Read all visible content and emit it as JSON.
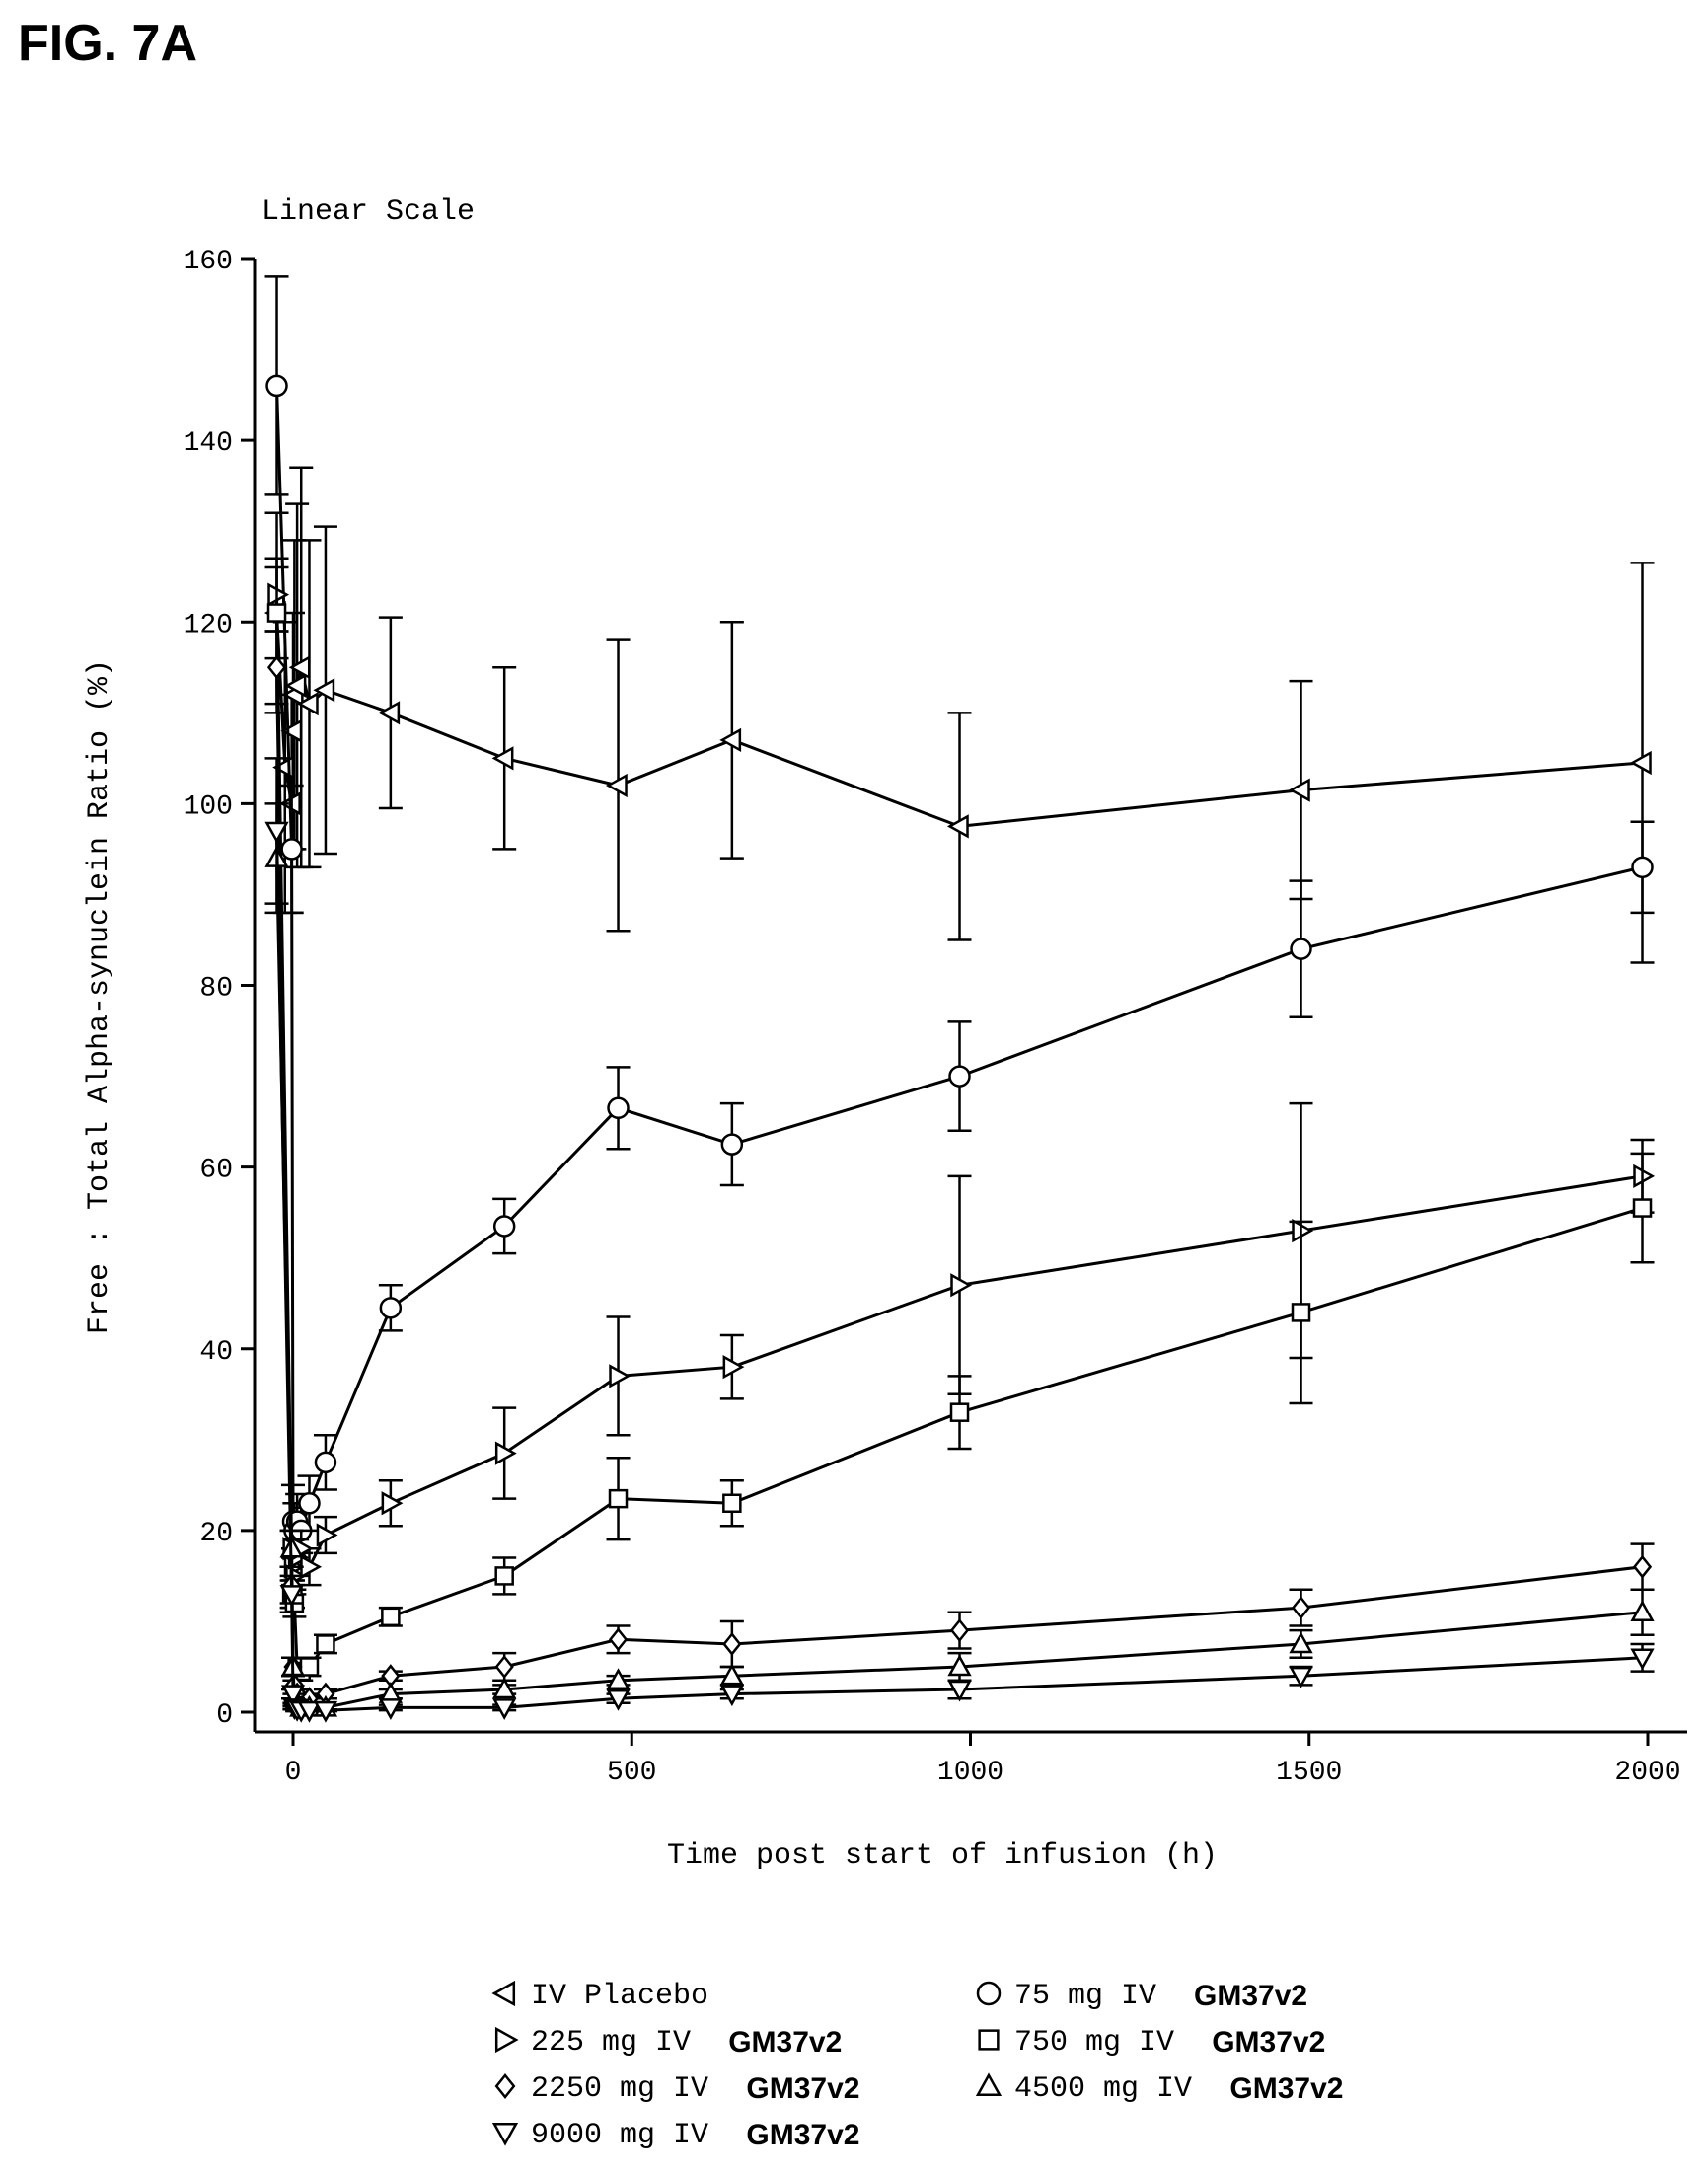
{
  "figure_label": "FIG. 7A",
  "chart_data": {
    "type": "line",
    "title": "Linear Scale",
    "xlabel": "Time post start of infusion (h)",
    "ylabel": "Free : Total Alpha-synuclein Ratio (%)",
    "xlim": [
      -50,
      2050
    ],
    "ylim": [
      0,
      160
    ],
    "xticks": [
      0,
      500,
      1000,
      1500,
      2000
    ],
    "yticks": [
      0,
      20,
      40,
      60,
      80,
      100,
      120,
      140,
      160
    ],
    "grid": false,
    "legend_position": "bottom",
    "series": [
      {
        "name": "IV Placebo",
        "suffix": "",
        "marker": "triangle-left",
        "x": [
          -24,
          -12,
          -2,
          0,
          2,
          6,
          12,
          24,
          48,
          144,
          312,
          480,
          648,
          984,
          1488,
          1992
        ],
        "y": [
          121,
          104,
          100,
          108,
          112,
          113,
          115,
          111,
          112.5,
          110,
          105,
          102,
          107,
          97.5,
          101.5,
          104.5
        ],
        "err": [
          11,
          16,
          12,
          13,
          17,
          20,
          22,
          18,
          18,
          10.5,
          10,
          16,
          13,
          12.5,
          12,
          22
        ]
      },
      {
        "name": "75 mg IV",
        "suffix": "GM37v2",
        "marker": "circle",
        "x": [
          -24,
          -2,
          0,
          2,
          6,
          12,
          24,
          48,
          144,
          312,
          480,
          648,
          984,
          1488,
          1992
        ],
        "y": [
          146,
          95,
          21,
          20,
          21,
          20,
          23,
          27.5,
          44.5,
          53.5,
          66.5,
          62.5,
          70,
          84,
          93
        ],
        "err": [
          12,
          7,
          4,
          3,
          3,
          2.5,
          3,
          3,
          2.5,
          3,
          4.5,
          4.5,
          6,
          7.5,
          5
        ]
      },
      {
        "name": "225 mg IV",
        "suffix": "GM37v2",
        "marker": "triangle-right",
        "x": [
          -24,
          -2,
          0,
          2,
          6,
          12,
          24,
          48,
          144,
          312,
          480,
          648,
          984,
          1488,
          1992
        ],
        "y": [
          123,
          18,
          16,
          15,
          17,
          18,
          16,
          19.5,
          23,
          28.5,
          37,
          38,
          47,
          53,
          59
        ],
        "err": [
          4,
          2,
          2,
          2,
          2,
          2,
          2,
          2,
          2.5,
          5,
          6.5,
          3.5,
          12,
          14,
          4
        ]
      },
      {
        "name": "750 mg IV",
        "suffix": "GM37v2",
        "marker": "square",
        "x": [
          -24,
          -2,
          0,
          2,
          6,
          12,
          24,
          48,
          144,
          312,
          480,
          648,
          984,
          1488,
          1992
        ],
        "y": [
          121,
          13,
          13,
          12,
          5,
          4.5,
          5,
          7.5,
          10.5,
          15,
          23.5,
          23,
          33,
          44,
          55.5
        ],
        "err": [
          5,
          1.5,
          1.5,
          1.5,
          1,
          1,
          1,
          1,
          1,
          2,
          4.5,
          2.5,
          4,
          10,
          6
        ]
      },
      {
        "name": "2250 mg IV",
        "suffix": "GM37v2",
        "marker": "diamond",
        "x": [
          -24,
          -2,
          0,
          2,
          6,
          12,
          24,
          48,
          144,
          312,
          480,
          648,
          984,
          1488,
          1992
        ],
        "y": [
          115,
          14,
          5,
          3,
          2,
          1.5,
          1.5,
          2,
          4,
          5,
          8,
          7.5,
          9,
          11.5,
          16
        ],
        "err": [
          4,
          2,
          1,
          0.5,
          0.5,
          0.5,
          0.5,
          0.5,
          0.5,
          1.5,
          1.5,
          2.5,
          2,
          2,
          2.5
        ]
      },
      {
        "name": "4500 mg IV",
        "suffix": "GM37v2",
        "marker": "triangle-up",
        "x": [
          -24,
          -2,
          0,
          2,
          6,
          12,
          24,
          48,
          144,
          312,
          480,
          648,
          984,
          1488,
          1992
        ],
        "y": [
          94,
          18,
          5,
          1.5,
          1,
          0.5,
          0.5,
          0.5,
          2,
          2.5,
          3.5,
          4,
          5,
          7.5,
          11
        ],
        "err": [
          6,
          2,
          1,
          0.5,
          0.3,
          0.3,
          0.3,
          0.3,
          0.5,
          0.5,
          0.5,
          1,
          1.5,
          1.5,
          2.5
        ]
      },
      {
        "name": "9000 mg IV",
        "suffix": "GM37v2",
        "marker": "triangle-down",
        "x": [
          -24,
          -2,
          0,
          2,
          6,
          12,
          24,
          48,
          144,
          312,
          480,
          648,
          984,
          1488,
          1992
        ],
        "y": [
          97,
          13,
          2,
          0.5,
          0.3,
          0.2,
          0.2,
          0.2,
          0.5,
          0.5,
          1.5,
          2,
          2.5,
          4,
          6
        ],
        "err": [
          8,
          2,
          0.5,
          0.2,
          0.2,
          0.1,
          0.1,
          0.1,
          0.3,
          0.3,
          0.5,
          0.5,
          1,
          1,
          1.5
        ]
      }
    ]
  }
}
